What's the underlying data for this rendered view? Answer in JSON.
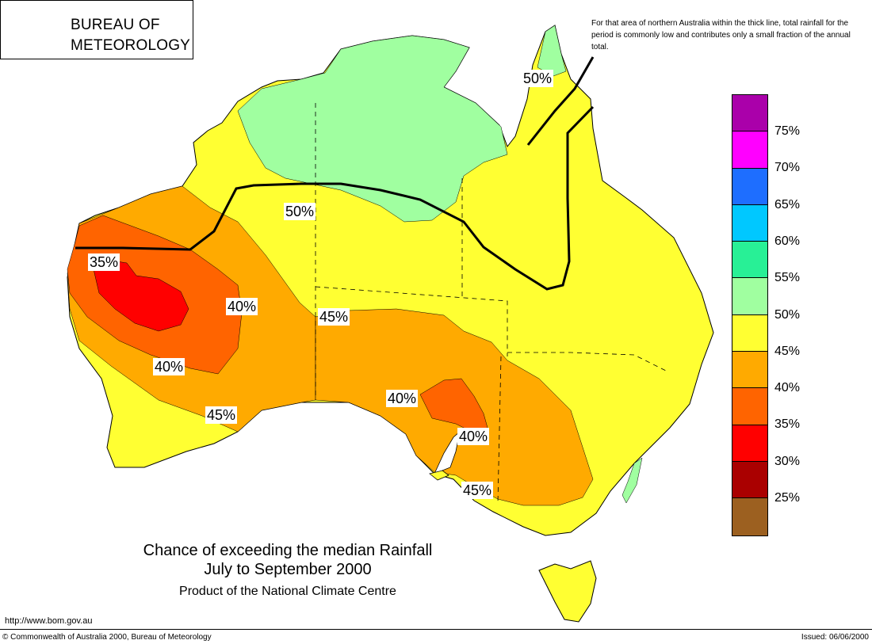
{
  "logo": {
    "line1": "BUREAU OF",
    "line2": "METEOROLOGY",
    "emblem_icon": "bom-swirl-emblem",
    "emblem_color": "#1a1aff"
  },
  "note": "For that area of northern Australia within the thick line, total rainfall for the period is commonly low and contributes only a small fraction of the annual total.",
  "legend": [
    {
      "label": "75%",
      "color": "#aa00aa"
    },
    {
      "label": "70%",
      "color": "#ff00ff"
    },
    {
      "label": "65%",
      "color": "#1e6eff"
    },
    {
      "label": "60%",
      "color": "#00c8ff"
    },
    {
      "label": "55%",
      "color": "#28f096"
    },
    {
      "label": "50%",
      "color": "#a0ffa0"
    },
    {
      "label": "45%",
      "color": "#ffff32"
    },
    {
      "label": "40%",
      "color": "#ffaa00"
    },
    {
      "label": "35%",
      "color": "#ff6400"
    },
    {
      "label": "30%",
      "color": "#ff0000"
    },
    {
      "label": "25%",
      "color": "#aa0000"
    },
    {
      "label": "",
      "color": "#9c6020"
    }
  ],
  "contour_labels": [
    "50%",
    "50%",
    "35%",
    "40%",
    "45%",
    "40%",
    "45%",
    "40%",
    "40%",
    "45%"
  ],
  "title": {
    "line1": "Chance of exceeding the median Rainfall",
    "line2": "July to September 2000",
    "subtitle": "Product of the National Climate Centre"
  },
  "footer": {
    "url": "http://www.bom.gov.au",
    "copyright": "© Commonwealth of Australia 2000, Bureau of Meteorology",
    "issued": "Issued: 06/06/2000"
  },
  "colors": {
    "yellow": "#ffff32",
    "light_green": "#a0ffa0",
    "orange": "#ffaa00",
    "dark_orange": "#ff6400",
    "red": "#ff0000"
  }
}
